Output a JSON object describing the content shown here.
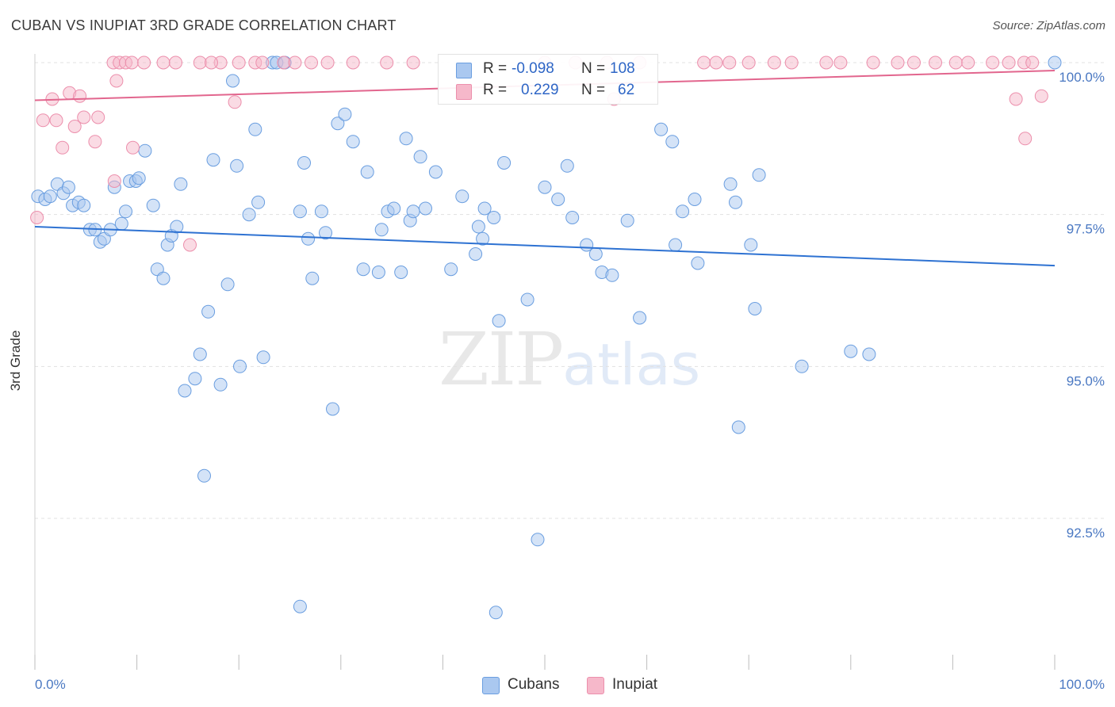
{
  "header": {
    "title": "CUBAN VS INUPIAT 3RD GRADE CORRELATION CHART",
    "source": "Source: ZipAtlas.com"
  },
  "watermark": {
    "zip": "ZIP",
    "atlas": "atlas"
  },
  "legend": {
    "rows": [
      {
        "r_label": "R =",
        "r_value": "-0.098",
        "n_label": "N =",
        "n_value": "108",
        "color": "#aac8f0"
      },
      {
        "r_label": "R =",
        "r_value": "0.229",
        "n_label": "N =",
        "n_value": "62",
        "color": "#f6b8ca"
      }
    ]
  },
  "bottom_legend": [
    {
      "label": "Cubans",
      "color": "#aac8f0"
    },
    {
      "label": "Inupiat",
      "color": "#f6b8ca"
    }
  ],
  "chart_data": {
    "type": "scatter",
    "title": "CUBAN VS INUPIAT 3RD GRADE CORRELATION CHART",
    "xlabel": "",
    "ylabel": "3rd Grade",
    "xlim": [
      0,
      100
    ],
    "ylim": [
      90.0,
      100.2
    ],
    "x_tick_labels": [
      "0.0%",
      "100.0%"
    ],
    "y_ticks": [
      {
        "value": 100.0,
        "label": "100.0%"
      },
      {
        "value": 97.5,
        "label": "97.5%"
      },
      {
        "value": 95.0,
        "label": "95.0%"
      },
      {
        "value": 92.5,
        "label": "92.5%"
      }
    ],
    "grid": true,
    "legend_position": "top-center",
    "series": [
      {
        "name": "Cubans",
        "color": "#6a9ee0",
        "fill": "#aac8f0",
        "trend": {
          "x": [
            0,
            100
          ],
          "y": [
            97.3,
            96.66
          ]
        },
        "points": [
          [
            0.3,
            97.8
          ],
          [
            1.0,
            97.75
          ],
          [
            1.5,
            97.8
          ],
          [
            2.2,
            98.0
          ],
          [
            2.8,
            97.85
          ],
          [
            3.3,
            97.95
          ],
          [
            3.7,
            97.65
          ],
          [
            4.3,
            97.7
          ],
          [
            4.8,
            97.65
          ],
          [
            5.4,
            97.25
          ],
          [
            5.9,
            97.25
          ],
          [
            6.4,
            97.05
          ],
          [
            6.8,
            97.1
          ],
          [
            7.4,
            97.25
          ],
          [
            7.8,
            97.95
          ],
          [
            8.5,
            97.35
          ],
          [
            8.9,
            97.55
          ],
          [
            10.8,
            98.55
          ],
          [
            9.3,
            98.05
          ],
          [
            9.9,
            98.05
          ],
          [
            10.2,
            98.1
          ],
          [
            11.6,
            97.65
          ],
          [
            12.0,
            96.6
          ],
          [
            12.6,
            96.45
          ],
          [
            13.0,
            97.0
          ],
          [
            13.4,
            97.15
          ],
          [
            13.9,
            97.3
          ],
          [
            14.3,
            98.0
          ],
          [
            14.7,
            94.6
          ],
          [
            15.7,
            94.8
          ],
          [
            16.2,
            95.2
          ],
          [
            16.6,
            93.2
          ],
          [
            17.0,
            95.9
          ],
          [
            17.5,
            98.4
          ],
          [
            18.2,
            94.7
          ],
          [
            18.9,
            96.35
          ],
          [
            19.4,
            99.7
          ],
          [
            19.8,
            98.3
          ],
          [
            20.1,
            95.0
          ],
          [
            21.0,
            97.5
          ],
          [
            21.6,
            98.9
          ],
          [
            21.9,
            97.7
          ],
          [
            22.4,
            95.15
          ],
          [
            23.3,
            100.0
          ],
          [
            23.7,
            100.0
          ],
          [
            24.5,
            100.0
          ],
          [
            26.0,
            97.55
          ],
          [
            26.4,
            98.35
          ],
          [
            26.8,
            97.1
          ],
          [
            27.2,
            96.45
          ],
          [
            28.1,
            97.55
          ],
          [
            28.5,
            97.2
          ],
          [
            29.2,
            94.3
          ],
          [
            29.7,
            99.0
          ],
          [
            30.4,
            99.15
          ],
          [
            31.2,
            98.7
          ],
          [
            32.2,
            96.6
          ],
          [
            32.6,
            98.2
          ],
          [
            33.7,
            96.55
          ],
          [
            34.0,
            97.25
          ],
          [
            34.6,
            97.55
          ],
          [
            35.2,
            97.6
          ],
          [
            35.9,
            96.55
          ],
          [
            36.4,
            98.75
          ],
          [
            36.8,
            97.4
          ],
          [
            37.1,
            97.55
          ],
          [
            37.8,
            98.45
          ],
          [
            38.3,
            97.6
          ],
          [
            39.3,
            98.2
          ],
          [
            40.8,
            96.6
          ],
          [
            41.9,
            97.8
          ],
          [
            43.2,
            96.85
          ],
          [
            43.5,
            97.3
          ],
          [
            43.9,
            97.1
          ],
          [
            44.1,
            97.6
          ],
          [
            45.0,
            97.45
          ],
          [
            45.5,
            95.75
          ],
          [
            46.0,
            98.35
          ],
          [
            48.3,
            96.1
          ],
          [
            49.3,
            92.15
          ],
          [
            50.0,
            97.95
          ],
          [
            51.3,
            97.75
          ],
          [
            52.2,
            98.3
          ],
          [
            52.7,
            97.45
          ],
          [
            54.1,
            97.0
          ],
          [
            55.0,
            96.85
          ],
          [
            55.6,
            96.55
          ],
          [
            56.6,
            96.5
          ],
          [
            58.1,
            97.4
          ],
          [
            59.3,
            95.8
          ],
          [
            61.4,
            98.9
          ],
          [
            62.5,
            98.7
          ],
          [
            62.8,
            97.0
          ],
          [
            63.5,
            97.55
          ],
          [
            64.7,
            97.75
          ],
          [
            65.0,
            96.7
          ],
          [
            68.2,
            98.0
          ],
          [
            68.7,
            97.7
          ],
          [
            69.0,
            94.0
          ],
          [
            70.2,
            97.0
          ],
          [
            70.6,
            95.95
          ],
          [
            71.0,
            98.15
          ],
          [
            75.2,
            95.0
          ],
          [
            80.0,
            95.25
          ],
          [
            81.8,
            95.2
          ],
          [
            100.0,
            100.0
          ],
          [
            26.0,
            91.05
          ],
          [
            45.2,
            90.95
          ]
        ]
      },
      {
        "name": "Inupiat",
        "color": "#ec8fac",
        "fill": "#f6b8ca",
        "trend": {
          "x": [
            0,
            100
          ],
          "y": [
            99.38,
            99.87
          ]
        },
        "points": [
          [
            0.2,
            97.45
          ],
          [
            0.8,
            99.05
          ],
          [
            1.7,
            99.4
          ],
          [
            2.1,
            99.05
          ],
          [
            2.7,
            98.6
          ],
          [
            3.4,
            99.5
          ],
          [
            3.9,
            98.95
          ],
          [
            4.4,
            99.45
          ],
          [
            4.8,
            99.1
          ],
          [
            5.9,
            98.7
          ],
          [
            6.2,
            99.1
          ],
          [
            7.7,
            100.0
          ],
          [
            8.3,
            100.0
          ],
          [
            8.9,
            100.0
          ],
          [
            9.5,
            100.0
          ],
          [
            8.0,
            99.7
          ],
          [
            9.6,
            98.6
          ],
          [
            10.7,
            100.0
          ],
          [
            12.6,
            100.0
          ],
          [
            13.8,
            100.0
          ],
          [
            16.2,
            100.0
          ],
          [
            18.2,
            100.0
          ],
          [
            20.0,
            100.0
          ],
          [
            21.6,
            100.0
          ],
          [
            22.3,
            100.0
          ],
          [
            24.4,
            100.0
          ],
          [
            25.5,
            100.0
          ],
          [
            27.1,
            100.0
          ],
          [
            28.7,
            100.0
          ],
          [
            31.2,
            100.0
          ],
          [
            34.5,
            100.0
          ],
          [
            37.1,
            100.0
          ],
          [
            19.6,
            99.35
          ],
          [
            7.8,
            98.05
          ],
          [
            15.2,
            97.0
          ],
          [
            17.3,
            100.0
          ],
          [
            50.0,
            100.0
          ],
          [
            53.0,
            100.0
          ],
          [
            56.1,
            100.0
          ],
          [
            56.8,
            99.4
          ],
          [
            59.3,
            100.0
          ],
          [
            65.6,
            100.0
          ],
          [
            66.8,
            100.0
          ],
          [
            68.1,
            100.0
          ],
          [
            70.0,
            100.0
          ],
          [
            72.5,
            100.0
          ],
          [
            74.2,
            100.0
          ],
          [
            77.6,
            100.0
          ],
          [
            79.0,
            100.0
          ],
          [
            82.2,
            100.0
          ],
          [
            84.6,
            100.0
          ],
          [
            86.2,
            100.0
          ],
          [
            88.3,
            100.0
          ],
          [
            90.3,
            100.0
          ],
          [
            91.5,
            100.0
          ],
          [
            93.9,
            100.0
          ],
          [
            95.5,
            100.0
          ],
          [
            97.0,
            100.0
          ],
          [
            97.8,
            100.0
          ],
          [
            96.2,
            99.4
          ],
          [
            97.1,
            98.75
          ],
          [
            98.7,
            99.45
          ]
        ]
      }
    ]
  }
}
